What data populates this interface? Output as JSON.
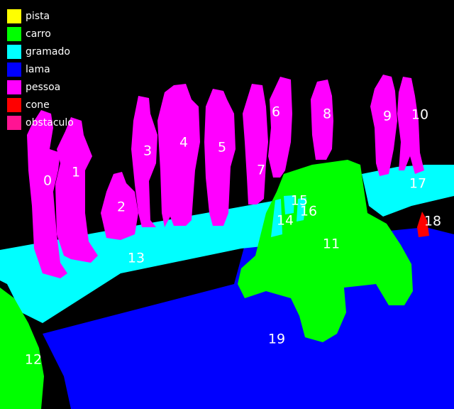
{
  "legend": [
    {
      "label": "pista",
      "color": "#ffff00"
    },
    {
      "label": "carro",
      "color": "#00ff00"
    },
    {
      "label": "gramado",
      "color": "#00ffff"
    },
    {
      "label": "lama",
      "color": "#0000ff"
    },
    {
      "label": "pessoa",
      "color": "#ff00ff"
    },
    {
      "label": "cone",
      "color": "#ff0000"
    },
    {
      "label": "obstaculo",
      "color": "#ff1493"
    }
  ],
  "segments": [
    {
      "id": "0",
      "cls": "pessoa"
    },
    {
      "id": "1",
      "cls": "pessoa"
    },
    {
      "id": "2",
      "cls": "pessoa"
    },
    {
      "id": "3",
      "cls": "pessoa"
    },
    {
      "id": "4",
      "cls": "pessoa"
    },
    {
      "id": "5",
      "cls": "pessoa"
    },
    {
      "id": "6",
      "cls": "pessoa"
    },
    {
      "id": "7",
      "cls": "pessoa"
    },
    {
      "id": "8",
      "cls": "pessoa"
    },
    {
      "id": "9",
      "cls": "pessoa"
    },
    {
      "id": "10",
      "cls": "pessoa"
    },
    {
      "id": "11",
      "cls": "carro"
    },
    {
      "id": "12",
      "cls": "carro"
    },
    {
      "id": "13",
      "cls": "gramado"
    },
    {
      "id": "14",
      "cls": "gramado"
    },
    {
      "id": "15",
      "cls": "gramado"
    },
    {
      "id": "16",
      "cls": "gramado"
    },
    {
      "id": "17",
      "cls": "gramado"
    },
    {
      "id": "18",
      "cls": "cone"
    },
    {
      "id": "19",
      "cls": "lama"
    }
  ]
}
